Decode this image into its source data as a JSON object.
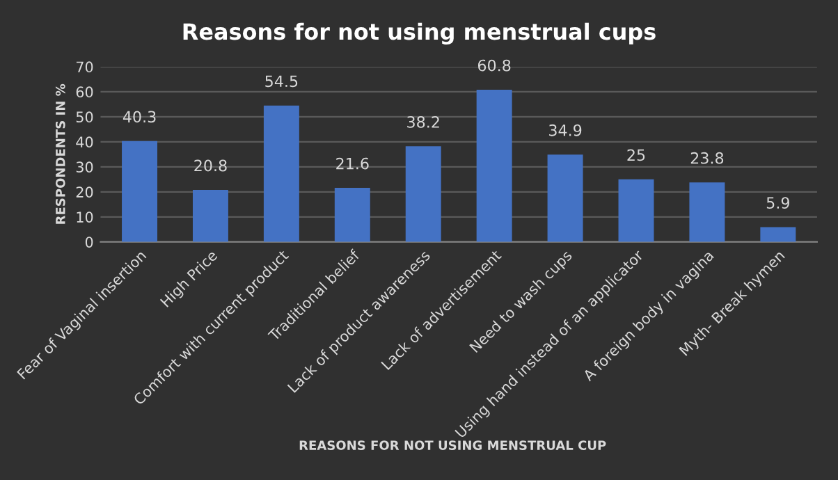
{
  "chart_data": {
    "type": "bar",
    "title": "Reasons for not using menstrual cups",
    "xlabel": "REASONS FOR NOT USING MENSTRUAL CUP",
    "ylabel": "RESPONDENTS IN %",
    "categories": [
      "Fear of Vaginal insertion",
      "High Price",
      "Comfort with current product",
      "Traditional belief",
      "Lack of product awareness",
      "Lack of advertisement",
      "Need to wash cups",
      "Using hand instead of an applicator",
      "A foreign body in vagina",
      "Myth- Break hymen"
    ],
    "values": [
      40.3,
      20.8,
      54.5,
      21.6,
      38.2,
      60.8,
      34.9,
      25,
      23.8,
      5.9
    ],
    "color": "#4472c4",
    "ylim": [
      0,
      70
    ],
    "yticks": [
      0,
      10,
      20,
      30,
      40,
      50,
      60,
      70
    ],
    "grid": "y",
    "data_labels": true,
    "legend": false
  }
}
